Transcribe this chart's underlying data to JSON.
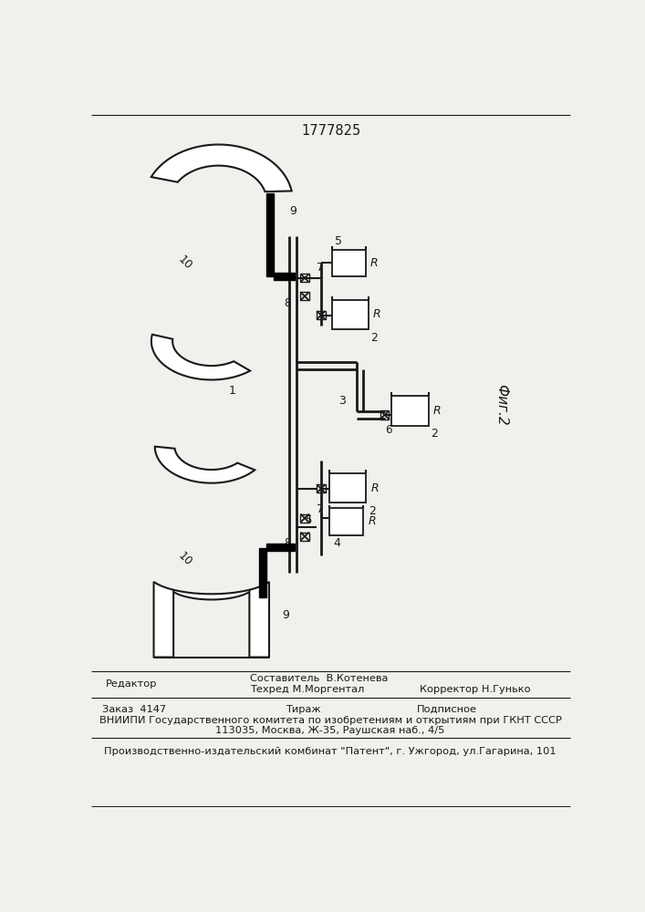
{
  "patent_number": "1777825",
  "fig_label": "Фиг.2",
  "bg_color": "#f0f0ec",
  "line_color": "#1a1a1a",
  "footer3": "Производственно-издательский комбинат \"Патент\", г. Ужгород, ул.Гагарина, 101"
}
